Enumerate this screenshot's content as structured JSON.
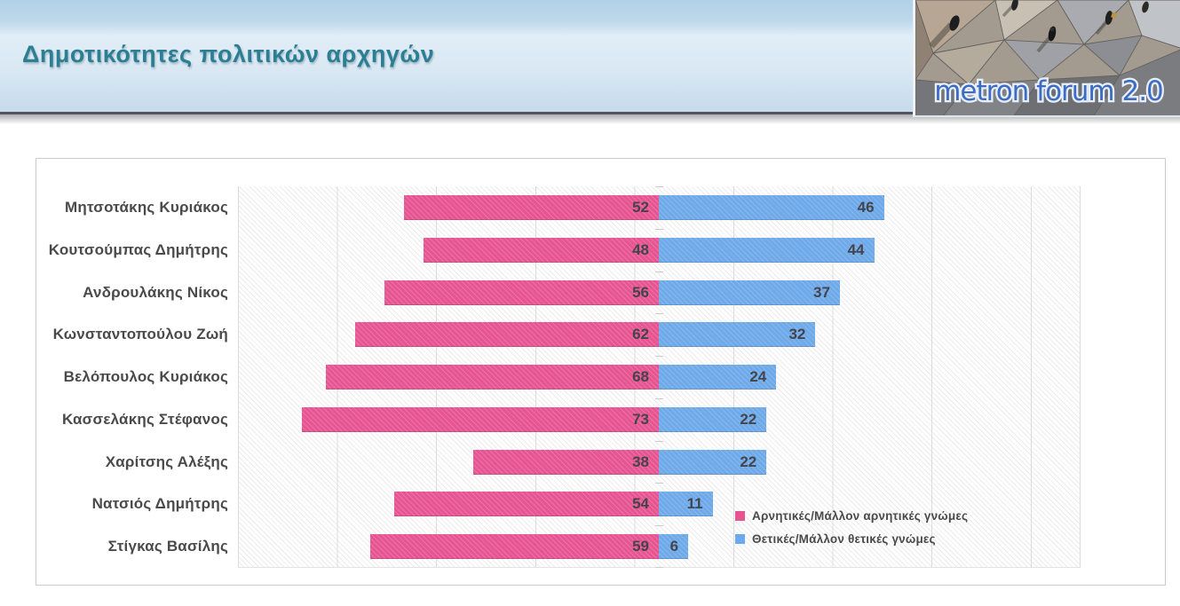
{
  "header": {
    "title": "Δημοτικότητες πολιτικών αρχηγών",
    "logo_text": "metron forum 2.0"
  },
  "colors": {
    "title_teal": "#2c7e93",
    "negative_pink": "#e75492",
    "positive_blue": "#6ea9e9",
    "value_text": "#44444c",
    "logo_text_blue": "#3d6cc4"
  },
  "chart_data": {
    "type": "bar",
    "orientation": "horizontal-diverging",
    "title": "Δημοτικότητες πολιτικών αρχηγών",
    "categories": [
      "Μητσοτάκης Κυριάκος",
      "Κουτσούμπας Δημήτρης",
      "Ανδρουλάκης Νίκος",
      "Κωνσταντοπούλου Ζωή",
      "Βελόπουλος Κυριάκος",
      "Κασσελάκης Στέφανος",
      "Χαρίτσης Αλέξης",
      "Νατσιός Δημήτρης",
      "Στίγκας Βασίλης"
    ],
    "series": [
      {
        "name": "Αρνητικές/Μάλλον αρνητικές γνώμες",
        "color": "#e75492",
        "direction": "left",
        "values": [
          52,
          48,
          56,
          62,
          68,
          73,
          38,
          54,
          59
        ]
      },
      {
        "name": "Θετικές/Μάλλον θετικές γνώμες",
        "color": "#6ea9e9",
        "direction": "right",
        "values": [
          46,
          44,
          37,
          32,
          24,
          22,
          22,
          11,
          6
        ]
      }
    ],
    "xlim": [
      -86,
      86
    ],
    "gridline_interval": 20,
    "grid": true,
    "value_labels": "inside-end",
    "legend_position": "inside-bottom-right"
  }
}
